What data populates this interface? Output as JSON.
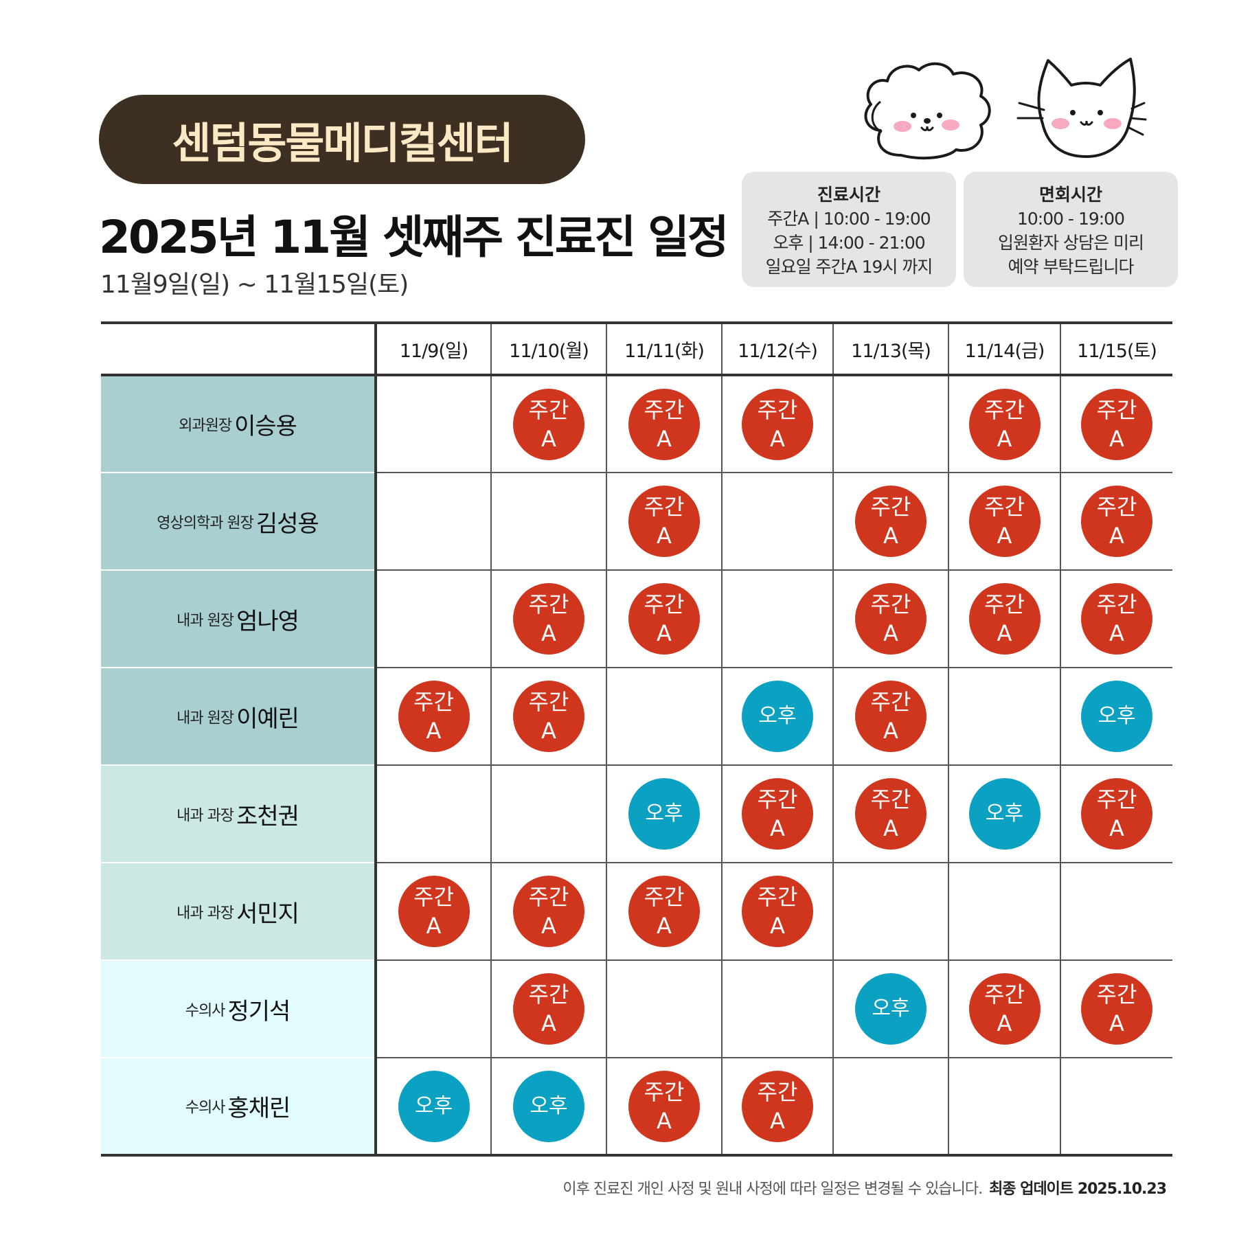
{
  "brand": "센텀동물메디컬센터",
  "title": "2025년 11월 셋째주 진료진 일정",
  "subtitle": "11월9일(일) ~ 11월15일(토)",
  "hours_box": {
    "heading": "진료시간",
    "lines": [
      "주간A | 10:00 - 19:00",
      "오후 | 14:00 - 21:00",
      "일요일 주간A 19시 까지"
    ]
  },
  "visit_box": {
    "heading": "면회시간",
    "lines": [
      "10:00 - 19:00",
      "입원환자 상담은 미리",
      "예약 부탁드립니다"
    ]
  },
  "legend": {
    "day_shift": [
      "주간",
      "A"
    ],
    "evening_shift": "오후"
  },
  "days": [
    "11/9(일)",
    "11/10(월)",
    "11/11(화)",
    "11/12(수)",
    "11/13(목)",
    "11/14(금)",
    "11/15(토)"
  ],
  "doctors": [
    {
      "role": "외과원장",
      "name": "이승용",
      "row_color": "#a9cfd0",
      "shifts": [
        "",
        "day",
        "day",
        "day",
        "",
        "day",
        "day"
      ]
    },
    {
      "role": "영상의학과 원장",
      "name": "김성용",
      "row_color": "#a9cfd0",
      "shifts": [
        "",
        "",
        "day",
        "",
        "day",
        "day",
        "day"
      ]
    },
    {
      "role": "내과 원장",
      "name": "엄나영",
      "row_color": "#a9cfd0",
      "shifts": [
        "",
        "day",
        "day",
        "",
        "day",
        "day",
        "day"
      ]
    },
    {
      "role": "내과 원장",
      "name": "이예린",
      "row_color": "#a9cfd0",
      "shifts": [
        "day",
        "day",
        "",
        "eve",
        "day",
        "",
        "eve"
      ]
    },
    {
      "role": "내과 과장",
      "name": "조천권",
      "row_color": "#cce8e5",
      "shifts": [
        "",
        "",
        "eve",
        "day",
        "day",
        "eve",
        "day"
      ]
    },
    {
      "role": "내과 과장",
      "name": "서민지",
      "row_color": "#cce8e5",
      "shifts": [
        "day",
        "day",
        "day",
        "day",
        "",
        "",
        ""
      ]
    },
    {
      "role": "수의사",
      "name": "정기석",
      "row_color": "#e2fbfc",
      "shifts": [
        "",
        "day",
        "",
        "",
        "eve",
        "day",
        "day"
      ]
    },
    {
      "role": "수의사",
      "name": "홍채린",
      "row_color": "#e2fbfc",
      "shifts": [
        "eve",
        "eve",
        "day",
        "day",
        "",
        "",
        ""
      ]
    }
  ],
  "colors": {
    "brand_pill": "#3d2f22",
    "brand_text": "#fbe9c6",
    "day_badge": "#d0351d",
    "evening_badge": "#0aa1c3",
    "info_box": "#e5e5e5"
  },
  "footnote": {
    "note": "이후 진료진 개인 사정 및 원내 사정에 따라 일정은 변경될 수 있습니다.",
    "update_label": "최종 업데이트  2025.10.23"
  }
}
